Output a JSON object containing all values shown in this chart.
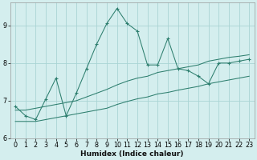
{
  "x": [
    0,
    1,
    2,
    3,
    4,
    5,
    6,
    7,
    8,
    9,
    10,
    11,
    12,
    13,
    14,
    15,
    16,
    17,
    18,
    19,
    20,
    21,
    22,
    23
  ],
  "y_main": [
    6.85,
    6.6,
    6.5,
    7.05,
    7.6,
    6.6,
    7.2,
    7.85,
    8.5,
    9.05,
    9.45,
    9.05,
    8.85,
    7.95,
    7.95,
    8.65,
    7.85,
    7.8,
    7.65,
    7.45,
    8.0,
    8.0,
    8.05,
    8.1
  ],
  "y_lower": [
    6.45,
    6.45,
    6.45,
    6.5,
    6.55,
    6.6,
    6.65,
    6.7,
    6.75,
    6.8,
    6.9,
    6.98,
    7.05,
    7.1,
    7.18,
    7.22,
    7.28,
    7.33,
    7.38,
    7.45,
    7.5,
    7.55,
    7.6,
    7.65
  ],
  "y_upper": [
    6.75,
    6.75,
    6.8,
    6.85,
    6.9,
    6.95,
    7.0,
    7.1,
    7.2,
    7.3,
    7.42,
    7.52,
    7.6,
    7.65,
    7.75,
    7.8,
    7.85,
    7.9,
    7.95,
    8.05,
    8.1,
    8.15,
    8.18,
    8.22
  ],
  "line_color": "#2d7e6e",
  "bg_color": "#d4eeee",
  "grid_color": "#aad4d4",
  "ylim": [
    6.0,
    9.6
  ],
  "xlim": [
    -0.5,
    23.5
  ],
  "yticks": [
    6,
    7,
    8,
    9
  ],
  "xticks": [
    0,
    1,
    2,
    3,
    4,
    5,
    6,
    7,
    8,
    9,
    10,
    11,
    12,
    13,
    14,
    15,
    16,
    17,
    18,
    19,
    20,
    21,
    22,
    23
  ],
  "xlabel": "Humidex (Indice chaleur)",
  "xlabel_fontsize": 6.5,
  "tick_fontsize": 5.8,
  "figsize": [
    3.2,
    2.0
  ],
  "dpi": 100
}
